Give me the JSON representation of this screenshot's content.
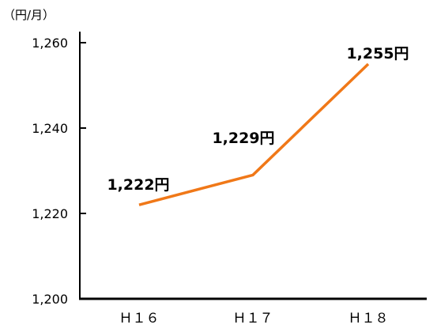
{
  "chart_data": {
    "type": "line",
    "unit_label": "（円/月）",
    "categories": [
      "Ｈ１６",
      "Ｈ１７",
      "Ｈ１８"
    ],
    "series": [
      {
        "values": [
          1222,
          1229,
          1255
        ],
        "color": "#f07818"
      }
    ],
    "data_labels": [
      "1,222円",
      "1,229円",
      "1,255円"
    ],
    "y_ticks": [
      "1,200",
      "1,220",
      "1,240",
      "1,260"
    ],
    "ylim": [
      1200,
      1260
    ],
    "grid": false,
    "legend": "none",
    "title": "",
    "xlabel": "",
    "ylabel": ""
  }
}
